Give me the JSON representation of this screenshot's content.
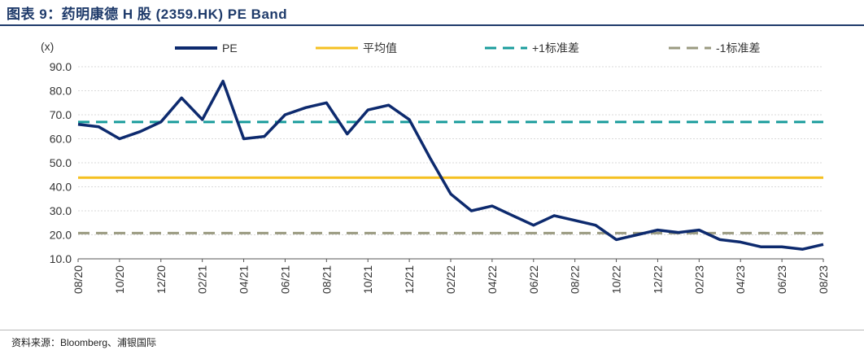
{
  "header": {
    "title": "图表 9：药明康德 H 股 (2359.HK) PE Band"
  },
  "footer": {
    "source": "资料来源：Bloomberg、浦银国际"
  },
  "colors": {
    "pe": "#0d2a6e",
    "mean": "#f5c021",
    "plus1": "#1a9c9c",
    "minus1": "#9a9a80",
    "grid": "#d9d9d9",
    "title": "#1f3b6b"
  },
  "chart_data": {
    "type": "line",
    "ylabel": "(x)",
    "ylim": [
      10,
      90
    ],
    "yticks": [
      "10.0",
      "20.0",
      "30.0",
      "40.0",
      "50.0",
      "60.0",
      "70.0",
      "80.0",
      "90.0"
    ],
    "xticks": [
      "08/20",
      "10/20",
      "12/20",
      "02/21",
      "04/21",
      "06/21",
      "08/21",
      "10/21",
      "12/21",
      "02/22",
      "04/22",
      "06/22",
      "08/22",
      "10/22",
      "12/22",
      "02/23",
      "04/23",
      "06/23",
      "08/23"
    ],
    "grid": true,
    "legend_position": "top",
    "series": [
      {
        "name": "PE",
        "style": "solid-thick",
        "x": [
          "08/20",
          "09/20",
          "10/20",
          "11/20",
          "12/20",
          "01/21",
          "02/21",
          "03/21",
          "04/21",
          "05/21",
          "06/21",
          "07/21",
          "08/21",
          "09/21",
          "10/21",
          "11/21",
          "12/21",
          "01/22",
          "02/22",
          "03/22",
          "04/22",
          "05/22",
          "06/22",
          "07/22",
          "08/22",
          "09/22",
          "10/22",
          "11/22",
          "12/22",
          "01/23",
          "02/23",
          "03/23",
          "04/23",
          "05/23",
          "06/23",
          "07/23",
          "08/23"
        ],
        "values": [
          66,
          65,
          60,
          63,
          67,
          77,
          68,
          84,
          60,
          61,
          70,
          73,
          75,
          62,
          72,
          74,
          68,
          52,
          37,
          30,
          32,
          28,
          24,
          28,
          26,
          24,
          18,
          20,
          22,
          21,
          22,
          18,
          17,
          15,
          15,
          14,
          16
        ]
      },
      {
        "name": "平均值",
        "style": "solid",
        "constant": 43.8
      },
      {
        "name": "+1标准差",
        "style": "dashed",
        "constant": 67
      },
      {
        "name": "-1标准差",
        "style": "dashed",
        "constant": 20.7
      }
    ]
  }
}
